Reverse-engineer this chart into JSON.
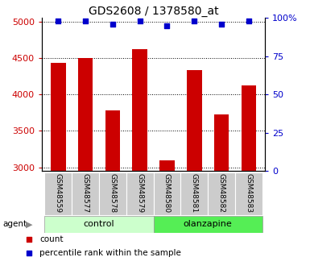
{
  "title": "GDS2608 / 1378580_at",
  "samples": [
    "GSM48559",
    "GSM48577",
    "GSM48578",
    "GSM48579",
    "GSM48580",
    "GSM48581",
    "GSM48582",
    "GSM48583"
  ],
  "counts": [
    4440,
    4500,
    3780,
    4620,
    3100,
    4330,
    3730,
    4130
  ],
  "percentile_ranks": [
    98,
    98,
    96,
    98,
    95,
    98,
    96,
    98
  ],
  "groups": [
    "control",
    "control",
    "control",
    "control",
    "olanzapine",
    "olanzapine",
    "olanzapine",
    "olanzapine"
  ],
  "group_colors": {
    "control": "#ccffcc",
    "olanzapine": "#55ee55"
  },
  "bar_color": "#cc0000",
  "dot_color": "#0000cc",
  "ylim_left": [
    2950,
    5050
  ],
  "ylim_right": [
    0,
    100
  ],
  "yticks_left": [
    3000,
    3500,
    4000,
    4500,
    5000
  ],
  "yticks_right": [
    0,
    25,
    50,
    75,
    100
  ],
  "yticklabels_right": [
    "0",
    "25",
    "50",
    "75",
    "100%"
  ],
  "left_color": "#cc0000",
  "right_color": "#0000cc",
  "background_color": "#ffffff",
  "tick_area_bg": "#cccccc",
  "legend_count_color": "#cc0000",
  "legend_pct_color": "#0000cc",
  "bar_width": 0.55
}
